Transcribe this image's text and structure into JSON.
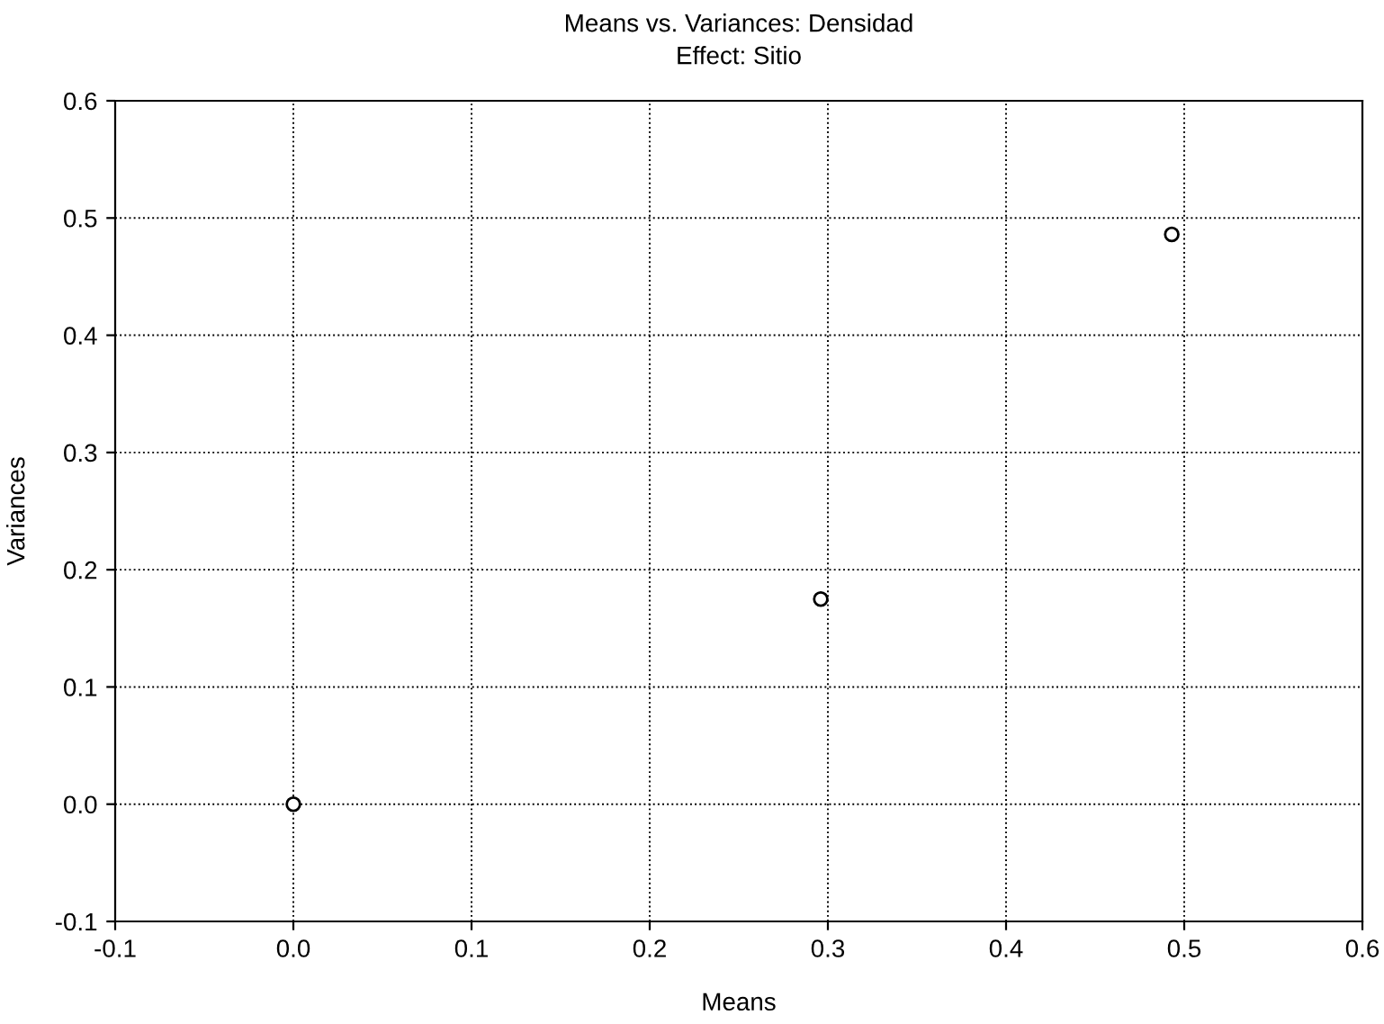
{
  "chart_data": {
    "type": "scatter",
    "title": "Means vs. Variances: Densidad",
    "subtitle": "Effect: Sitio",
    "xlabel": "Means",
    "ylabel": "Variances",
    "x": [
      0.0,
      0.296,
      0.493
    ],
    "series": [
      {
        "color": "#000000",
        "values": [
          0.0,
          0.175,
          0.486
        ]
      }
    ],
    "xlim": [
      -0.1,
      0.6
    ],
    "xticks": [
      {
        "value": -0.1,
        "label": "-0.1"
      },
      {
        "value": 0.0,
        "label": "0.0"
      },
      {
        "value": 0.1,
        "label": "0.1"
      },
      {
        "value": 0.2,
        "label": "0.2"
      },
      {
        "value": 0.3,
        "label": "0.3"
      },
      {
        "value": 0.4,
        "label": "0.4"
      },
      {
        "value": 0.5,
        "label": "0.5"
      },
      {
        "value": 0.6,
        "label": "0.6"
      }
    ],
    "ylim": [
      -0.1,
      0.6
    ],
    "yticks": [
      {
        "value": -0.1,
        "label": "-0.1"
      },
      {
        "value": 0.0,
        "label": "0.0"
      },
      {
        "value": 0.1,
        "label": "0.1"
      },
      {
        "value": 0.2,
        "label": "0.2"
      },
      {
        "value": 0.3,
        "label": "0.3"
      },
      {
        "value": 0.4,
        "label": "0.4"
      },
      {
        "value": 0.5,
        "label": "0.5"
      },
      {
        "value": 0.6,
        "label": "0.6"
      }
    ],
    "grid": true,
    "marker": "circle"
  }
}
